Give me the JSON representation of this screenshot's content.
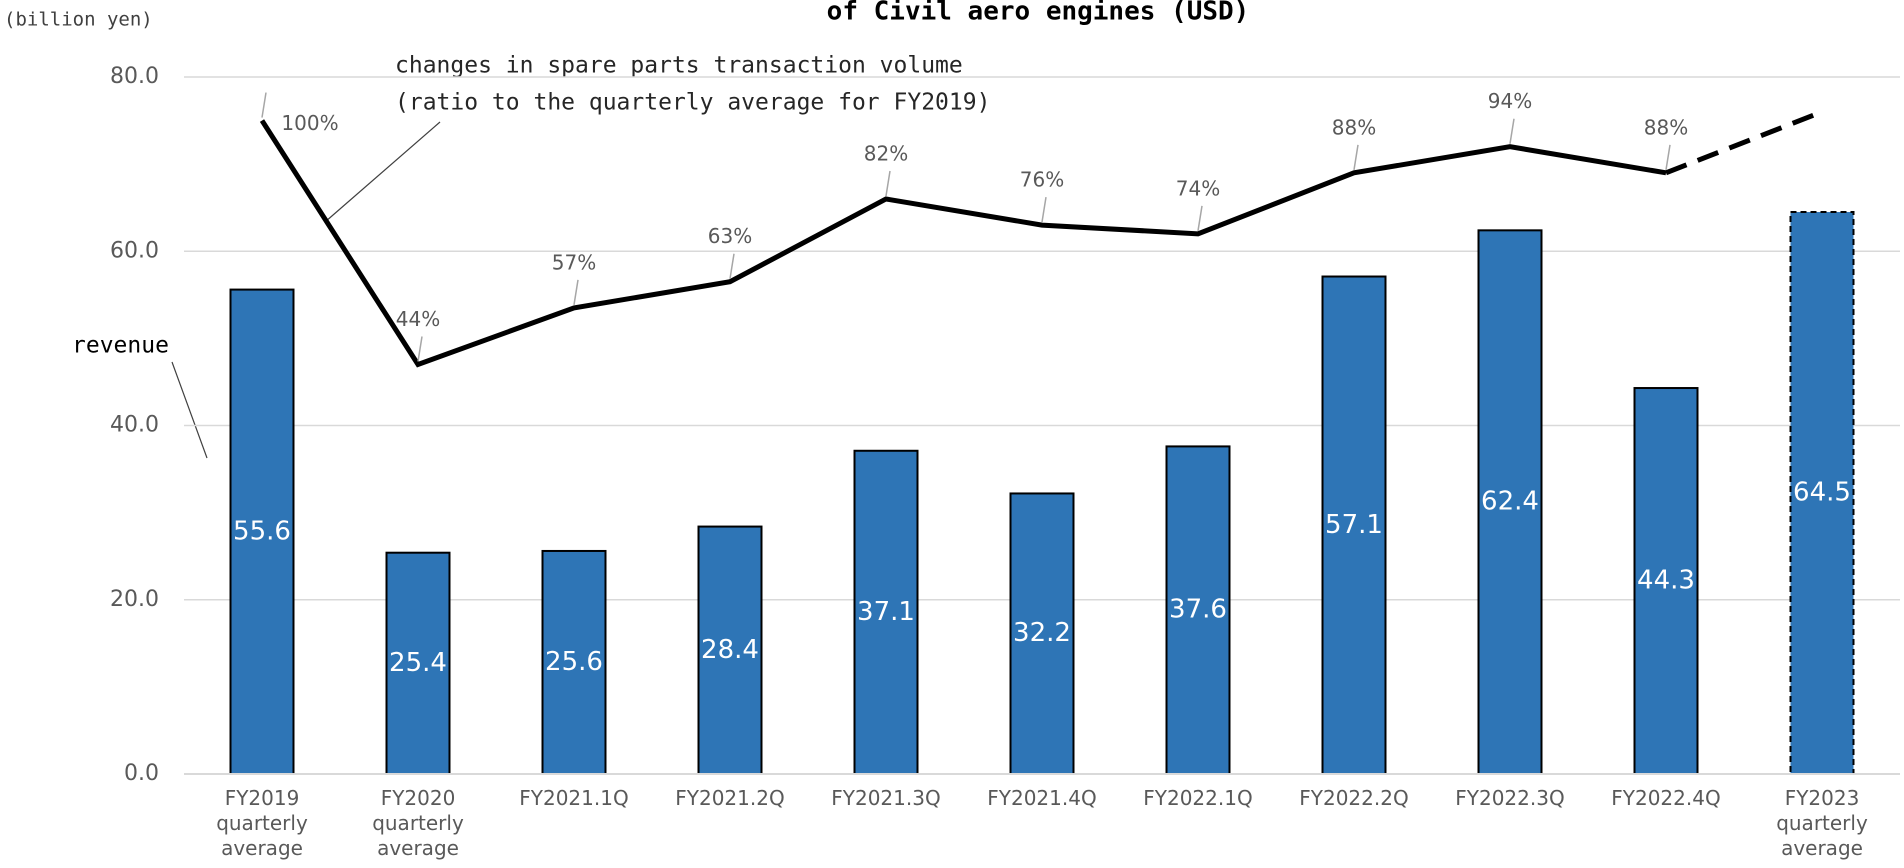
{
  "chart_data": {
    "type": "bar",
    "title": "of Civil aero engines (USD)",
    "unit_label": "(billion yen)",
    "annotations": [
      "changes in spare parts transaction volume",
      "(ratio to the quarterly average for FY2019)",
      "revenue"
    ],
    "categories": [
      "FY2019 quarterly average",
      "FY2020 quarterly average",
      "FY2021.1Q",
      "FY2021.2Q",
      "FY2021.3Q",
      "FY2021.4Q",
      "FY2022.1Q",
      "FY2022.2Q",
      "FY2022.3Q",
      "FY2022.4Q",
      "FY2023 quarterly average"
    ],
    "series": [
      {
        "name": "revenue",
        "color": "#2e75b6",
        "values": [
          55.6,
          25.4,
          25.6,
          28.4,
          37.1,
          32.2,
          37.6,
          57.1,
          62.4,
          44.3,
          64.5
        ],
        "dashed_last": true
      },
      {
        "name": "changes in spare parts transaction volume",
        "type": "line",
        "axis": "y2",
        "color": "#000000",
        "values": [
          100,
          44,
          57,
          63,
          82,
          76,
          74,
          88,
          94,
          88,
          102
        ],
        "value_labels": [
          "100%",
          "44%",
          "57%",
          "63%",
          "82%",
          "76%",
          "74%",
          "88%",
          "94%",
          "88%",
          null
        ],
        "dashed_last": true
      }
    ],
    "ylim": [
      0,
      80
    ],
    "yticks": [
      {
        "value": 0,
        "label": "0.0"
      },
      {
        "value": 20,
        "label": "20.0"
      },
      {
        "value": 40,
        "label": "40.0"
      },
      {
        "value": 60,
        "label": "60.0"
      },
      {
        "value": 80,
        "label": "80.0"
      }
    ],
    "y2lim": [
      -50,
      110
    ],
    "grid": true
  }
}
